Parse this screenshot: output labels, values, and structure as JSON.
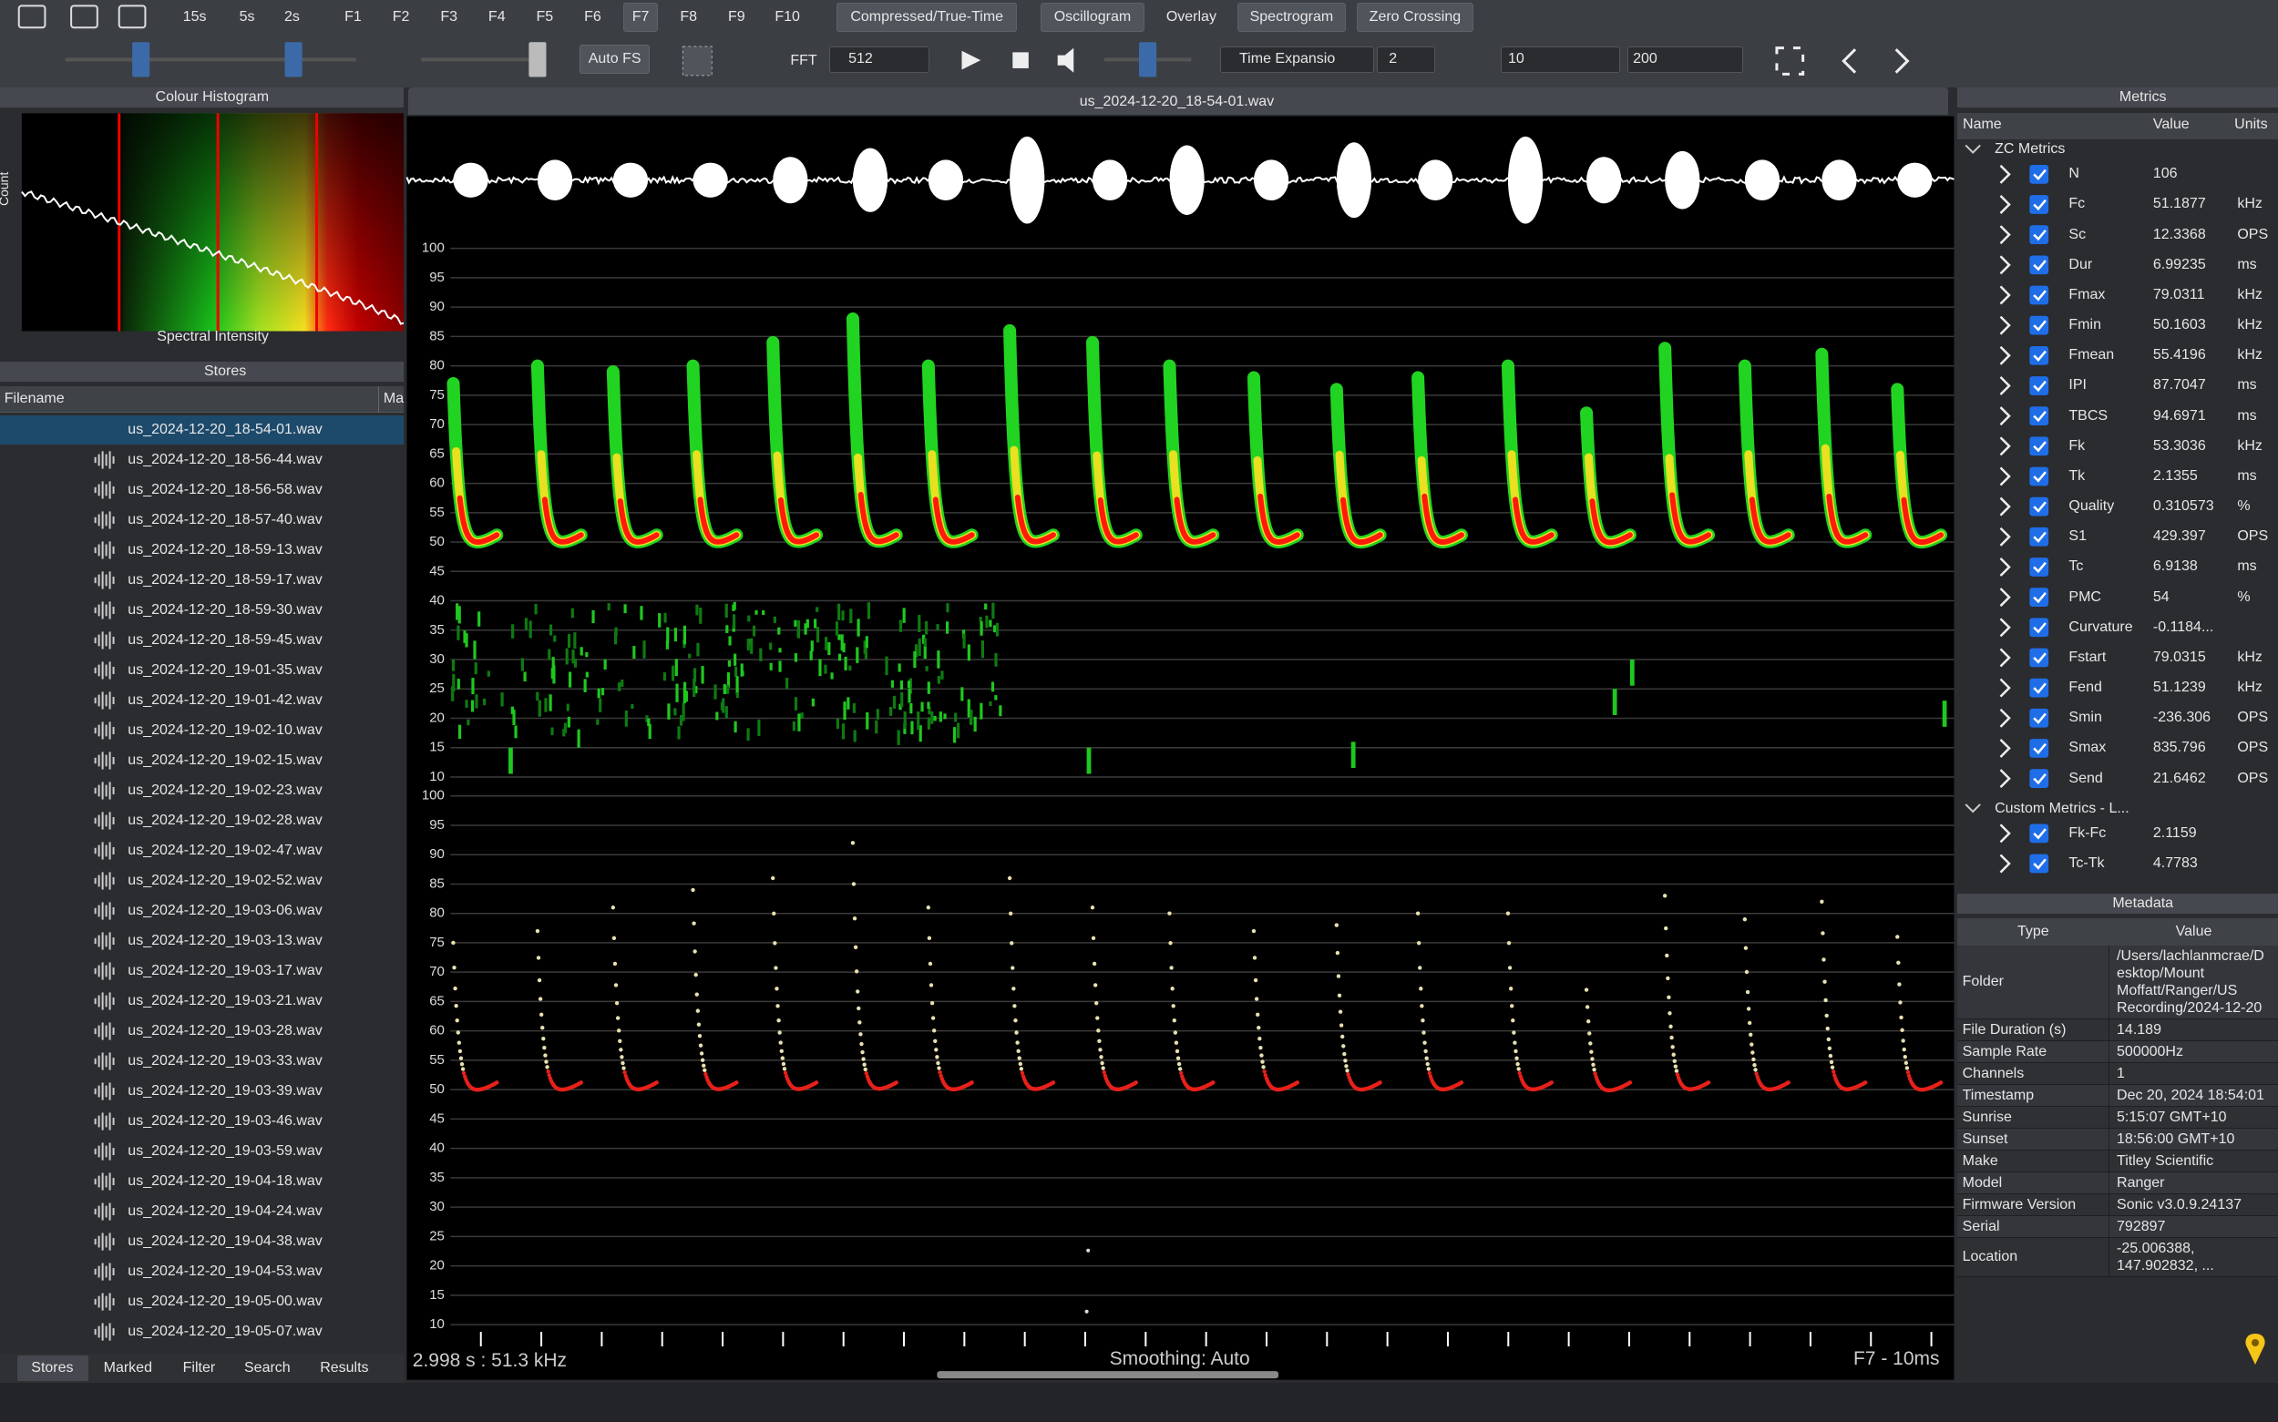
{
  "toolbar": {
    "buttons": [
      "15s",
      "5s",
      "2s",
      "F1",
      "F2",
      "F3",
      "F4",
      "F5",
      "F6",
      "F7",
      "F8",
      "F9",
      "F10",
      "Compressed/True-Time",
      "Oscillogram",
      "Overlay",
      "Spectrogram",
      "Zero Crossing"
    ],
    "auto_fs": "Auto FS",
    "fft_label": "FFT",
    "fft_size": "512",
    "time_expansion": "Time Expansio",
    "te_value": "2",
    "min_value": "10",
    "max_value": "200"
  },
  "histogram": {
    "title": "Colour Histogram",
    "y_label": "Count",
    "x_label": "Spectral Intensity"
  },
  "stores": {
    "title": "Stores",
    "columns": [
      "Filename",
      "Ma"
    ],
    "files": [
      "us_2024-12-20_18-54-01.wav",
      "us_2024-12-20_18-56-44.wav",
      "us_2024-12-20_18-56-58.wav",
      "us_2024-12-20_18-57-40.wav",
      "us_2024-12-20_18-59-13.wav",
      "us_2024-12-20_18-59-17.wav",
      "us_2024-12-20_18-59-30.wav",
      "us_2024-12-20_18-59-45.wav",
      "us_2024-12-20_19-01-35.wav",
      "us_2024-12-20_19-01-42.wav",
      "us_2024-12-20_19-02-10.wav",
      "us_2024-12-20_19-02-15.wav",
      "us_2024-12-20_19-02-23.wav",
      "us_2024-12-20_19-02-28.wav",
      "us_2024-12-20_19-02-47.wav",
      "us_2024-12-20_19-02-52.wav",
      "us_2024-12-20_19-03-06.wav",
      "us_2024-12-20_19-03-13.wav",
      "us_2024-12-20_19-03-17.wav",
      "us_2024-12-20_19-03-21.wav",
      "us_2024-12-20_19-03-28.wav",
      "us_2024-12-20_19-03-33.wav",
      "us_2024-12-20_19-03-39.wav",
      "us_2024-12-20_19-03-46.wav",
      "us_2024-12-20_19-03-59.wav",
      "us_2024-12-20_19-04-18.wav",
      "us_2024-12-20_19-04-24.wav",
      "us_2024-12-20_19-04-38.wav",
      "us_2024-12-20_19-04-53.wav",
      "us_2024-12-20_19-05-00.wav",
      "us_2024-12-20_19-05-07.wav"
    ],
    "tabs": [
      "Stores",
      "Marked",
      "Filter",
      "Search",
      "Results"
    ]
  },
  "viewer": {
    "title": "us_2024-12-20_18-54-01.wav",
    "spectrogram": {
      "yticks": [
        100,
        95,
        90,
        85,
        80,
        75,
        70,
        65,
        60,
        55,
        50,
        45,
        40,
        35,
        30,
        25,
        20,
        15,
        10
      ]
    },
    "zero_crossing": {
      "yticks": [
        100,
        95,
        90,
        85,
        80,
        75,
        70,
        65,
        60,
        55,
        50,
        45,
        40,
        35,
        30,
        25,
        20,
        15,
        10
      ]
    },
    "cursor": "2.998 s : 51.3 kHz",
    "smoothing": "Smoothing: Auto",
    "mode": "F7 - 10ms"
  },
  "metrics": {
    "title": "Metrics",
    "columns": [
      "Name",
      "Value",
      "Units"
    ],
    "groups": [
      {
        "name": "ZC Metrics",
        "rows": [
          {
            "name": "N",
            "value": "106"
          },
          {
            "name": "Fc",
            "value": "51.1877",
            "unit": "kHz"
          },
          {
            "name": "Sc",
            "value": "12.3368",
            "unit": "OPS"
          },
          {
            "name": "Dur",
            "value": "6.99235",
            "unit": "ms"
          },
          {
            "name": "Fmax",
            "value": "79.0311",
            "unit": "kHz"
          },
          {
            "name": "Fmin",
            "value": "50.1603",
            "unit": "kHz"
          },
          {
            "name": "Fmean",
            "value": "55.4196",
            "unit": "kHz"
          },
          {
            "name": "IPI",
            "value": "87.7047",
            "unit": "ms"
          },
          {
            "name": "TBCS",
            "value": "94.6971",
            "unit": "ms"
          },
          {
            "name": "Fk",
            "value": "53.3036",
            "unit": "kHz"
          },
          {
            "name": "Tk",
            "value": "2.1355",
            "unit": "ms"
          },
          {
            "name": "Quality",
            "value": "0.310573",
            "unit": "%"
          },
          {
            "name": "S1",
            "value": "429.397",
            "unit": "OPS"
          },
          {
            "name": "Tc",
            "value": "6.9138",
            "unit": "ms"
          },
          {
            "name": "PMC",
            "value": "54",
            "unit": "%"
          },
          {
            "name": "Curvature",
            "value": "-0.1184..."
          },
          {
            "name": "Fstart",
            "value": "79.0315",
            "unit": "kHz"
          },
          {
            "name": "Fend",
            "value": "51.1239",
            "unit": "kHz"
          },
          {
            "name": "Smin",
            "value": "-236.306",
            "unit": "OPS"
          },
          {
            "name": "Smax",
            "value": "835.796",
            "unit": "OPS"
          },
          {
            "name": "Send",
            "value": "21.6462",
            "unit": "OPS"
          }
        ]
      },
      {
        "name": "Custom Metrics - L...",
        "rows": [
          {
            "name": "Fk-Fc",
            "value": "2.1159"
          },
          {
            "name": "Tc-Tk",
            "value": "4.7783"
          }
        ]
      }
    ]
  },
  "metadata": {
    "title": "Metadata",
    "columns": [
      "Type",
      "Value"
    ],
    "rows": [
      [
        "Folder",
        "/Users/lachlanmcrae/Desktop/Mount Moffatt/Ranger/US Recording/2024-12-20"
      ],
      [
        "File Duration (s)",
        "14.189"
      ],
      [
        "Sample Rate",
        "500000Hz"
      ],
      [
        "Channels",
        "1"
      ],
      [
        "Timestamp",
        "Dec 20, 2024 18:54:01"
      ],
      [
        "Sunrise",
        "5:15:07 GMT+10"
      ],
      [
        "Sunset",
        "18:56:00 GMT+10"
      ],
      [
        "Make",
        "Titley Scientific"
      ],
      [
        "Model",
        "Ranger"
      ],
      [
        "Firmware Version",
        "Sonic v3.0.9.24137"
      ],
      [
        "Serial",
        "792897"
      ],
      [
        "Location",
        "-25.006388, 147.902832, ..."
      ]
    ]
  }
}
